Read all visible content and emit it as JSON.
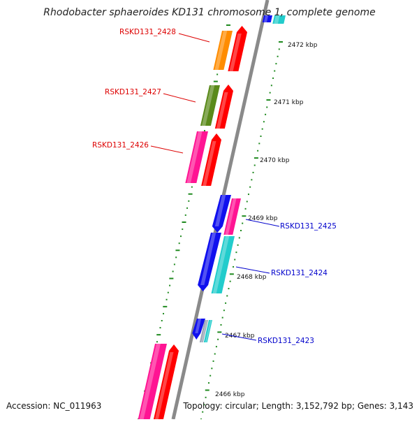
{
  "title": "Rhodobacter sphaeroides KD131 chromosome 1, complete genome",
  "footer": {
    "accession": "Accession: NC_011963",
    "summary": "Topology: circular; Length: 3,152,792 bp; Genes: 3,143"
  },
  "colors": {
    "backbone": "#8a8a8a",
    "tick": "#1f8a1f",
    "label_left": "#dd0000",
    "label_right": "#0000cc",
    "gene_red": "#ff0000",
    "gene_orange": "#ff8c00",
    "gene_olive": "#5a8a1a",
    "gene_pink": "#ff1493",
    "gene_blue": "#1010ee",
    "gene_cyan": "#22cccc"
  },
  "scale_labels": [
    "2472 kbp",
    "2471 kbp",
    "2470 kbp",
    "2469 kbp",
    "2468 kbp",
    "2467 kbp",
    "2466 kbp"
  ],
  "gene_labels_left": [
    "RSKD131_2428",
    "RSKD131_2427",
    "RSKD131_2426"
  ],
  "gene_labels_right": [
    "RSKD131_2425",
    "RSKD131_2424",
    "RSKD131_2423"
  ]
}
